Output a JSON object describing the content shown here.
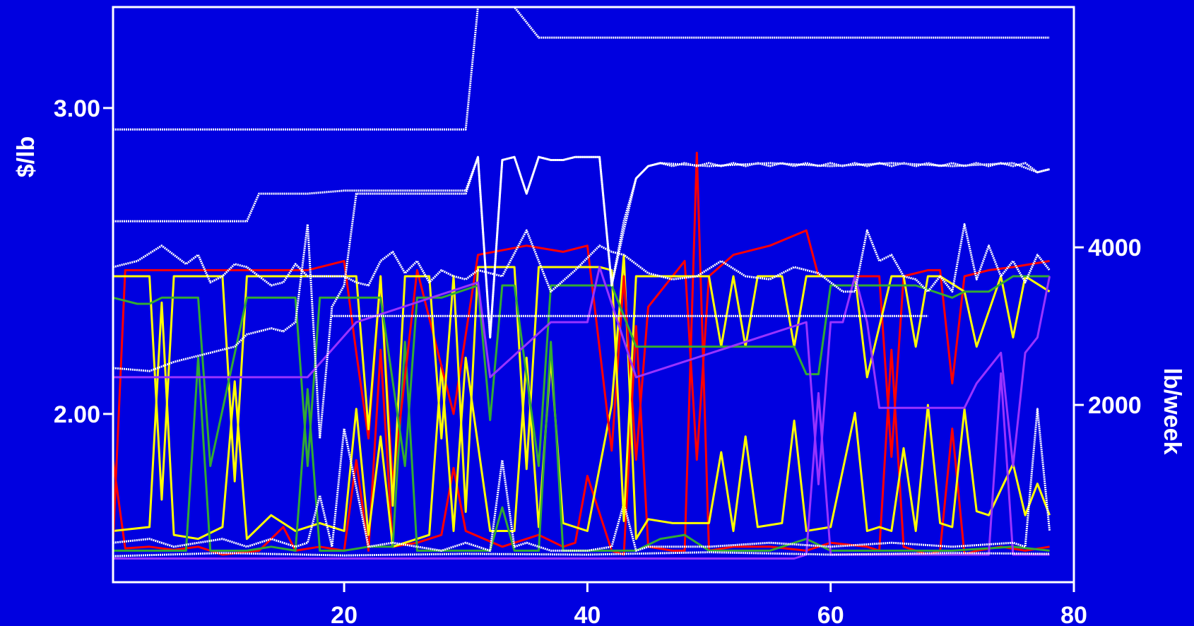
{
  "chart_data": {
    "type": "line",
    "title": "",
    "xlabel": "",
    "ylabel_left": "$/lb",
    "ylabel_right": "lb/week",
    "x_ticks": [
      20,
      40,
      60,
      80
    ],
    "left_ticks": [
      "2.00",
      "3.00"
    ],
    "left_tick_values": [
      2.0,
      3.0
    ],
    "right_ticks": [
      "2000",
      "4000"
    ],
    "right_tick_values": [
      2000,
      4000
    ],
    "xlim": [
      1,
      80
    ],
    "left_ylim": [
      1.45,
      3.33
    ],
    "right_ylim": [
      -250,
      7050
    ],
    "grid": false,
    "colors": {
      "background": "#0000e0",
      "axes": "#ffffff",
      "red": "#ff0000",
      "yellow": "#ffff00",
      "green": "#33aa33",
      "purple": "#9933ff",
      "white": "#ffffff"
    },
    "price_series": [
      {
        "color": "red",
        "x": [
          1,
          2,
          5,
          10,
          17,
          20,
          21,
          22,
          23,
          24,
          26,
          29,
          31,
          35,
          38,
          40,
          42,
          43,
          44,
          45,
          47,
          48,
          49,
          50,
          52,
          55,
          58,
          59,
          62,
          64,
          65,
          66,
          68,
          69,
          70,
          71,
          73,
          75,
          78
        ],
        "y": [
          1.58,
          2.47,
          2.47,
          2.47,
          2.47,
          2.5,
          2.2,
          1.92,
          2.45,
          1.77,
          2.47,
          2.0,
          2.52,
          2.55,
          2.53,
          2.55,
          1.88,
          2.45,
          1.85,
          2.35,
          2.45,
          2.5,
          1.85,
          2.45,
          2.52,
          2.55,
          2.6,
          2.45,
          2.45,
          2.45,
          1.86,
          2.45,
          2.47,
          2.47,
          2.1,
          2.45,
          2.47,
          2.48,
          2.5
        ]
      },
      {
        "color": "yellow",
        "x": [
          1,
          4,
          5,
          6,
          10,
          11,
          12,
          20,
          21,
          22,
          23,
          24,
          25,
          27,
          28,
          29,
          30,
          31,
          34,
          35,
          36,
          37,
          39,
          41,
          42,
          43,
          44,
          50,
          51,
          52,
          53,
          54,
          56,
          57,
          58,
          62,
          63,
          65,
          66,
          67,
          68,
          69,
          71,
          72,
          74,
          75,
          76,
          78
        ],
        "y": [
          2.45,
          2.45,
          1.72,
          2.45,
          2.45,
          1.78,
          2.45,
          2.45,
          2.45,
          1.95,
          2.45,
          1.7,
          2.45,
          2.45,
          1.92,
          2.45,
          1.68,
          2.48,
          2.48,
          1.82,
          2.48,
          2.48,
          2.48,
          2.48,
          2.47,
          1.65,
          2.45,
          2.45,
          2.22,
          2.45,
          2.22,
          2.45,
          2.45,
          2.22,
          2.45,
          2.45,
          2.12,
          2.45,
          2.45,
          2.22,
          2.45,
          2.45,
          2.4,
          2.22,
          2.45,
          2.25,
          2.45,
          2.4
        ]
      },
      {
        "color": "green",
        "x": [
          1,
          3,
          4,
          5,
          8,
          9,
          12,
          13,
          16,
          17,
          18,
          20,
          21,
          22,
          23,
          25,
          26,
          28,
          31,
          32,
          33,
          34,
          36,
          37,
          39,
          40,
          42,
          44,
          48,
          51,
          57,
          58,
          59,
          60,
          62,
          64,
          67,
          70,
          71,
          73,
          75,
          78
        ],
        "y": [
          2.38,
          2.36,
          2.36,
          2.38,
          2.38,
          1.83,
          2.38,
          2.38,
          2.38,
          1.83,
          2.38,
          2.38,
          2.38,
          2.38,
          2.38,
          1.83,
          2.38,
          2.38,
          2.42,
          1.98,
          2.42,
          2.42,
          1.83,
          2.42,
          2.42,
          2.42,
          2.42,
          2.22,
          2.22,
          2.22,
          2.22,
          2.13,
          2.13,
          2.42,
          2.42,
          2.42,
          2.42,
          2.38,
          2.4,
          2.4,
          2.45,
          2.45
        ]
      },
      {
        "color": "purple",
        "x": [
          1,
          5,
          10,
          13,
          17,
          21,
          31,
          32,
          37,
          40,
          41,
          44,
          58,
          59,
          60,
          61,
          62,
          63,
          64,
          66,
          71,
          72,
          74,
          75,
          76,
          77,
          78
        ],
        "y": [
          2.12,
          2.12,
          2.12,
          2.12,
          2.12,
          2.3,
          2.43,
          2.12,
          2.3,
          2.3,
          2.48,
          2.12,
          2.3,
          1.77,
          2.3,
          2.3,
          2.45,
          2.3,
          2.02,
          2.02,
          2.02,
          2.1,
          2.2,
          1.83,
          2.2,
          2.25,
          2.45
        ]
      },
      {
        "color": "white",
        "x": [
          1,
          30,
          31,
          34,
          36,
          78
        ],
        "y": [
          2.93,
          2.93,
          3.33,
          3.33,
          3.23,
          3.23
        ]
      },
      {
        "color": "white",
        "x": [
          1,
          12,
          13,
          17,
          20,
          21,
          30,
          31,
          32,
          33,
          34,
          35,
          36,
          37,
          38,
          39,
          40,
          41,
          42,
          43,
          44,
          45,
          46,
          50,
          55,
          60,
          65,
          70,
          75,
          77,
          78
        ],
        "y": [
          2.63,
          2.63,
          2.72,
          2.72,
          2.73,
          2.73,
          2.73,
          2.84,
          2.25,
          2.83,
          2.84,
          2.72,
          2.84,
          2.83,
          2.83,
          2.84,
          2.84,
          2.84,
          2.42,
          2.63,
          2.77,
          2.81,
          2.82,
          2.81,
          2.82,
          2.81,
          2.82,
          2.81,
          2.82,
          2.79,
          2.8
        ]
      },
      {
        "color": "white",
        "x": [
          1,
          4,
          6,
          7,
          9,
          11,
          12,
          13,
          14,
          15,
          16,
          17,
          18,
          19,
          20,
          21,
          22,
          23,
          24,
          25,
          26,
          27,
          28,
          29,
          30,
          31,
          32,
          33,
          34,
          35,
          36,
          37,
          38,
          39,
          40,
          41,
          42,
          43,
          44,
          45,
          46,
          47,
          48,
          49,
          50,
          51,
          52,
          53,
          54,
          55,
          56,
          57,
          58,
          59,
          60,
          61,
          62,
          63,
          64,
          65,
          66,
          67,
          68,
          69,
          70,
          71,
          72,
          73,
          74,
          75,
          76,
          77,
          78
        ],
        "y": [
          2.15,
          2.14,
          2.17,
          2.18,
          2.2,
          2.22,
          2.26,
          2.27,
          2.28,
          2.27,
          2.3,
          2.62,
          1.92,
          2.35,
          2.42,
          2.72,
          2.72,
          2.72,
          2.72,
          2.72,
          2.72,
          2.72,
          2.72,
          2.72,
          2.72,
          2.84,
          2.25,
          2.83,
          2.84,
          2.72,
          2.84,
          2.83,
          2.83,
          2.84,
          2.84,
          2.84,
          2.42,
          2.6,
          2.77,
          2.81,
          2.82,
          2.81,
          2.82,
          2.81,
          2.82,
          2.81,
          2.82,
          2.81,
          2.82,
          2.81,
          2.82,
          2.81,
          2.82,
          2.81,
          2.82,
          2.81,
          2.82,
          2.81,
          2.82,
          2.81,
          2.82,
          2.81,
          2.82,
          2.81,
          2.82,
          2.81,
          2.82,
          2.81,
          2.82,
          2.81,
          2.82,
          2.79,
          2.8
        ]
      },
      {
        "color": "white",
        "x": [
          1,
          3,
          5,
          7,
          8,
          9,
          10,
          11,
          12,
          13,
          14,
          15,
          16,
          17,
          18,
          19,
          20,
          21,
          22,
          23,
          24,
          25,
          26,
          27,
          28,
          29,
          30,
          31,
          33,
          35,
          37,
          39,
          41,
          42,
          43,
          45,
          47,
          49,
          51,
          53,
          55,
          57,
          59,
          61,
          62,
          63,
          64,
          65,
          66,
          67,
          68,
          69,
          70,
          71,
          72,
          73,
          74,
          75,
          76,
          77,
          78
        ],
        "y": [
          2.48,
          2.5,
          2.55,
          2.49,
          2.52,
          2.43,
          2.45,
          2.49,
          2.48,
          2.45,
          2.42,
          2.43,
          2.49,
          2.45,
          2.45,
          2.45,
          2.45,
          2.43,
          2.42,
          2.5,
          2.53,
          2.46,
          2.5,
          2.43,
          2.47,
          2.45,
          2.44,
          2.47,
          2.45,
          2.6,
          2.4,
          2.47,
          2.55,
          2.53,
          2.52,
          2.46,
          2.44,
          2.45,
          2.5,
          2.45,
          2.44,
          2.48,
          2.46,
          2.4,
          2.4,
          2.6,
          2.5,
          2.52,
          2.45,
          2.44,
          2.4,
          2.45,
          2.4,
          2.62,
          2.44,
          2.55,
          2.45,
          2.5,
          2.43,
          2.52,
          2.47
        ]
      },
      {
        "color": "white",
        "x": [
          19,
          20,
          68
        ],
        "y": [
          2.32,
          2.32,
          2.32
        ]
      }
    ],
    "volume_series": [
      {
        "color": "red",
        "x": [
          1,
          2,
          4,
          6,
          8,
          10,
          13,
          15,
          16,
          18,
          20,
          21,
          22,
          23,
          24,
          26,
          28,
          29,
          30,
          33,
          36,
          38,
          39,
          40,
          42,
          43,
          44,
          45,
          47,
          48,
          49,
          50,
          52,
          55,
          58,
          60,
          63,
          64,
          65,
          66,
          68,
          69,
          70,
          71,
          72,
          74,
          76,
          78
        ],
        "y": [
          1300,
          180,
          200,
          160,
          200,
          100,
          150,
          450,
          150,
          200,
          150,
          1300,
          150,
          2700,
          200,
          250,
          350,
          1200,
          400,
          200,
          350,
          200,
          250,
          1100,
          150,
          100,
          3000,
          200,
          150,
          150,
          5200,
          150,
          200,
          200,
          150,
          250,
          200,
          150,
          2700,
          200,
          100,
          150,
          1700,
          100,
          150,
          200,
          150,
          200
        ]
      },
      {
        "color": "yellow",
        "x": [
          1,
          4,
          5,
          6,
          8,
          10,
          11,
          12,
          14,
          16,
          18,
          20,
          21,
          22,
          23,
          24,
          25,
          27,
          28,
          29,
          30,
          32,
          34,
          35,
          36,
          37,
          38,
          40,
          42,
          43,
          44,
          45,
          47,
          50,
          51,
          52,
          53,
          54,
          56,
          57,
          58,
          60,
          62,
          63,
          64,
          65,
          66,
          67,
          68,
          69,
          70,
          71,
          72,
          73,
          75,
          76,
          77,
          78
        ],
        "y": [
          400,
          450,
          3300,
          350,
          300,
          450,
          2300,
          300,
          600,
          400,
          500,
          400,
          1950,
          350,
          1600,
          200,
          250,
          350,
          2500,
          400,
          2600,
          400,
          400,
          2600,
          450,
          2600,
          500,
          400,
          2000,
          3900,
          300,
          550,
          500,
          500,
          1400,
          400,
          1600,
          450,
          500,
          1800,
          400,
          450,
          1900,
          400,
          450,
          400,
          1450,
          400,
          2000,
          500,
          450,
          1950,
          650,
          600,
          1250,
          600,
          1000,
          600
        ]
      },
      {
        "color": "green",
        "x": [
          1,
          5,
          7,
          8,
          9,
          10,
          12,
          14,
          16,
          17,
          18,
          20,
          22,
          24,
          25,
          26,
          28,
          30,
          32,
          33,
          34,
          36,
          37,
          38,
          40,
          44,
          46,
          48,
          50,
          55,
          58,
          60,
          65,
          70,
          75,
          78
        ],
        "y": [
          150,
          150,
          150,
          2600,
          150,
          150,
          150,
          200,
          150,
          2200,
          150,
          150,
          200,
          200,
          2800,
          150,
          150,
          150,
          150,
          700,
          150,
          150,
          2800,
          150,
          150,
          150,
          300,
          350,
          150,
          150,
          300,
          150,
          150,
          150,
          200,
          150
        ]
      },
      {
        "color": "purple",
        "x": [
          1,
          10,
          15,
          20,
          30,
          40,
          50,
          57,
          58,
          59,
          60,
          63,
          65,
          70,
          73,
          74,
          75,
          78
        ],
        "y": [
          50,
          50,
          50,
          50,
          50,
          50,
          50,
          50,
          100,
          2150,
          100,
          100,
          100,
          100,
          100,
          2400,
          100,
          100
        ]
      },
      {
        "color": "white",
        "x": [
          1,
          4,
          6,
          8,
          10,
          12,
          14,
          16,
          17,
          18,
          19,
          20,
          22,
          24,
          26,
          28,
          30,
          32,
          33,
          34,
          35,
          37,
          40,
          42,
          43,
          44,
          45,
          50,
          55,
          60,
          65,
          70,
          75,
          76,
          77,
          78
        ],
        "y": [
          250,
          300,
          200,
          250,
          300,
          200,
          300,
          200,
          250,
          850,
          200,
          1700,
          200,
          250,
          200,
          150,
          250,
          150,
          1300,
          200,
          250,
          150,
          150,
          200,
          750,
          150,
          200,
          200,
          250,
          200,
          250,
          200,
          250,
          200,
          1950,
          400
        ]
      },
      {
        "color": "white",
        "x": [
          1,
          10,
          20,
          30,
          40,
          50,
          60,
          70,
          78
        ],
        "y": [
          80,
          120,
          90,
          110,
          100,
          130,
          100,
          120,
          110
        ]
      }
    ]
  }
}
